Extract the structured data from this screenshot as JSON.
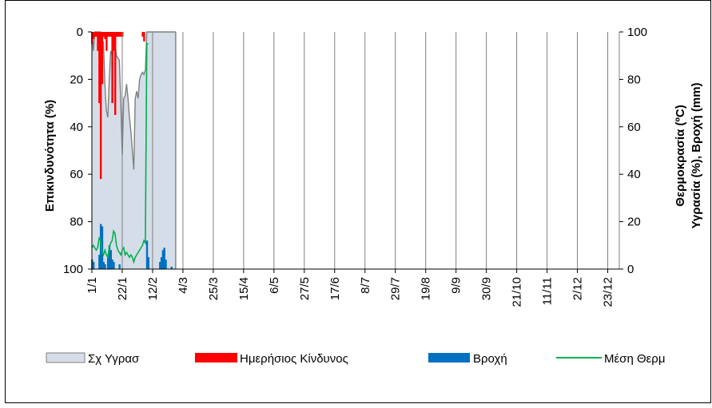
{
  "chart_data": {
    "type": "combo",
    "title": "",
    "ylabel_left": "Επικινδυνότητα (%)",
    "ylabel_right_line1": "Θερμοκρασία (ºC)",
    "ylabel_right_line2": "Υγρασία (%), Βροχή (mm)",
    "left_axis": {
      "range": [
        0,
        100
      ],
      "inverted": true,
      "ticks": [
        "0",
        "20",
        "40",
        "60",
        "80",
        "100"
      ]
    },
    "right_axis": {
      "range": [
        0,
        100
      ],
      "ticks": [
        "100",
        "80",
        "60",
        "40",
        "20",
        "0"
      ]
    },
    "x_axis": {
      "unit": "day-of-year",
      "range": [
        1,
        366
      ],
      "ticks": [
        {
          "label": "1/1",
          "day": 1
        },
        {
          "label": "22/1",
          "day": 22
        },
        {
          "label": "12/2",
          "day": 43
        },
        {
          "label": "4/3",
          "day": 64
        },
        {
          "label": "25/3",
          "day": 85
        },
        {
          "label": "15/4",
          "day": 106
        },
        {
          "label": "6/5",
          "day": 127
        },
        {
          "label": "27/5",
          "day": 148
        },
        {
          "label": "17/6",
          "day": 169
        },
        {
          "label": "8/7",
          "day": 190
        },
        {
          "label": "29/7",
          "day": 211
        },
        {
          "label": "19/8",
          "day": 232
        },
        {
          "label": "9/9",
          "day": 253
        },
        {
          "label": "30/9",
          "day": 274
        },
        {
          "label": "21/10",
          "day": 295
        },
        {
          "label": "11/11",
          "day": 316
        },
        {
          "label": "2/12",
          "day": 337
        },
        {
          "label": "23/12",
          "day": 358
        }
      ],
      "vertical_grid": true
    },
    "legend_position": "bottom",
    "colors": {
      "humidity_fill": "#d5dde8",
      "risk": "#ff0000",
      "rain": "#0070c0",
      "temp": "#00b050",
      "grid": "#808080"
    },
    "series": [
      {
        "name": "Σχ Υγρασ",
        "kind": "area",
        "axis": "left",
        "points": [
          [
            1,
            0
          ],
          [
            2,
            8
          ],
          [
            3,
            0
          ],
          [
            4,
            0
          ],
          [
            5,
            0
          ],
          [
            6,
            0
          ],
          [
            7,
            0
          ],
          [
            8,
            10
          ],
          [
            9,
            4
          ],
          [
            10,
            22
          ],
          [
            11,
            33
          ],
          [
            12,
            36
          ],
          [
            13,
            20
          ],
          [
            14,
            8
          ],
          [
            15,
            10
          ],
          [
            16,
            2
          ],
          [
            17,
            5
          ],
          [
            18,
            10
          ],
          [
            19,
            11
          ],
          [
            20,
            12
          ],
          [
            21,
            30
          ],
          [
            22,
            52
          ],
          [
            23,
            28
          ],
          [
            24,
            27
          ],
          [
            25,
            22
          ],
          [
            26,
            28
          ],
          [
            27,
            36
          ],
          [
            28,
            42
          ],
          [
            29,
            50
          ],
          [
            30,
            58
          ],
          [
            31,
            28
          ],
          [
            32,
            25
          ],
          [
            33,
            28
          ],
          [
            34,
            20
          ],
          [
            35,
            18
          ],
          [
            36,
            17
          ],
          [
            37,
            18
          ],
          [
            38,
            16
          ],
          [
            39,
            0
          ],
          [
            40,
            0
          ],
          [
            41,
            0
          ],
          [
            42,
            0
          ],
          [
            43,
            0
          ],
          [
            44,
            0
          ],
          [
            45,
            0
          ],
          [
            46,
            0
          ],
          [
            47,
            0
          ],
          [
            48,
            0
          ],
          [
            49,
            0
          ],
          [
            50,
            0
          ],
          [
            51,
            0
          ],
          [
            52,
            0
          ],
          [
            53,
            0
          ],
          [
            54,
            0
          ],
          [
            55,
            0
          ],
          [
            56,
            0
          ],
          [
            57,
            0
          ],
          [
            58,
            0
          ],
          [
            59,
            0
          ]
        ]
      },
      {
        "name": "Ημερήσιος Κίνδυνος",
        "kind": "bar",
        "axis": "left",
        "points": [
          [
            1,
            5
          ],
          [
            2,
            3
          ],
          [
            3,
            2
          ],
          [
            4,
            2
          ],
          [
            5,
            8
          ],
          [
            6,
            30
          ],
          [
            7,
            62
          ],
          [
            8,
            22
          ],
          [
            9,
            2
          ],
          [
            10,
            3
          ],
          [
            11,
            8
          ],
          [
            12,
            2
          ],
          [
            13,
            2
          ],
          [
            14,
            2
          ],
          [
            15,
            30
          ],
          [
            16,
            8
          ],
          [
            17,
            35
          ],
          [
            18,
            2
          ],
          [
            19,
            2
          ],
          [
            20,
            2
          ],
          [
            21,
            2
          ],
          [
            22,
            2
          ],
          [
            36,
            2
          ],
          [
            37,
            4
          ]
        ]
      },
      {
        "name": "Βροχή",
        "kind": "bar",
        "axis": "right",
        "points": [
          [
            1,
            4
          ],
          [
            2,
            3
          ],
          [
            6,
            6
          ],
          [
            7,
            19
          ],
          [
            8,
            18
          ],
          [
            9,
            3
          ],
          [
            10,
            2
          ],
          [
            12,
            6
          ],
          [
            13,
            10
          ],
          [
            14,
            8
          ],
          [
            15,
            4
          ],
          [
            16,
            3
          ],
          [
            20,
            2
          ],
          [
            39,
            12
          ],
          [
            40,
            5
          ],
          [
            48,
            3
          ],
          [
            49,
            5
          ],
          [
            50,
            8
          ],
          [
            51,
            9
          ],
          [
            52,
            4
          ],
          [
            56,
            1
          ]
        ]
      },
      {
        "name": "Μέση Θερμ",
        "kind": "line",
        "axis": "right",
        "points": [
          [
            1,
            9
          ],
          [
            2,
            10
          ],
          [
            3,
            9
          ],
          [
            4,
            8
          ],
          [
            5,
            9
          ],
          [
            6,
            13
          ],
          [
            7,
            12
          ],
          [
            8,
            7
          ],
          [
            9,
            6
          ],
          [
            10,
            8
          ],
          [
            11,
            6
          ],
          [
            12,
            5
          ],
          [
            13,
            9
          ],
          [
            14,
            11
          ],
          [
            15,
            12
          ],
          [
            16,
            16
          ],
          [
            17,
            15
          ],
          [
            18,
            10
          ],
          [
            19,
            8
          ],
          [
            20,
            7
          ],
          [
            21,
            6
          ],
          [
            22,
            8
          ],
          [
            23,
            9
          ],
          [
            24,
            6
          ],
          [
            25,
            7
          ],
          [
            26,
            6
          ],
          [
            27,
            5
          ],
          [
            28,
            6
          ],
          [
            29,
            5
          ],
          [
            30,
            3
          ],
          [
            31,
            5
          ],
          [
            32,
            6
          ],
          [
            33,
            7
          ],
          [
            34,
            8
          ],
          [
            35,
            9
          ],
          [
            36,
            10
          ],
          [
            37,
            12
          ],
          [
            38,
            11
          ],
          [
            39,
            95
          ],
          [
            40,
            95
          ]
        ]
      }
    ]
  }
}
